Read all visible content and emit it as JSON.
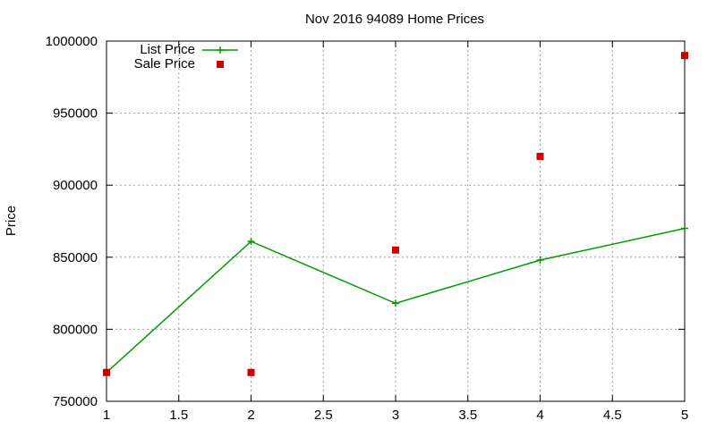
{
  "chart_data": {
    "type": "line",
    "title": "Nov 2016 94089 Home Prices",
    "xlabel": "",
    "ylabel": "Price",
    "xlim": [
      1,
      5
    ],
    "ylim": [
      750000,
      1000000
    ],
    "x_ticks": [
      "1",
      "1.5",
      "2",
      "2.5",
      "3",
      "3.5",
      "4",
      "4.5",
      "5"
    ],
    "y_ticks": [
      "750000",
      "800000",
      "850000",
      "900000",
      "950000",
      "1000000"
    ],
    "grid": true,
    "legend_position": "top-left",
    "series": [
      {
        "name": "List Price",
        "style": "line-with-plus-markers",
        "color": "#009900",
        "x": [
          1,
          2,
          3,
          4,
          5
        ],
        "y": [
          770000,
          861000,
          818000,
          848000,
          870000
        ]
      },
      {
        "name": "Sale Price",
        "style": "square-markers",
        "color": "#cc0000",
        "x": [
          1,
          2,
          3,
          4,
          5
        ],
        "y": [
          770000,
          770000,
          855000,
          920000,
          990000
        ]
      }
    ]
  }
}
